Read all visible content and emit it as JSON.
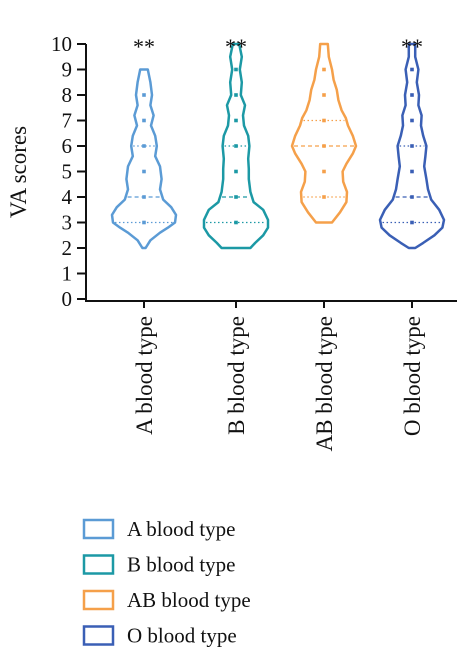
{
  "chart_data": {
    "type": "violin",
    "ylabel": "VA scores",
    "ylim": [
      0,
      10
    ],
    "yticks": [
      0,
      1,
      2,
      3,
      4,
      5,
      6,
      7,
      8,
      9,
      10
    ],
    "categories": [
      "A blood type",
      "B blood type",
      "AB blood type",
      "O blood type"
    ],
    "significance": [
      "**",
      "**",
      "",
      "**"
    ],
    "legend_position": "bottom-left",
    "grid": false,
    "series": [
      {
        "name": "A blood type",
        "color": "#5b9bd5",
        "min": 2,
        "max": 9,
        "quartiles": [
          3,
          4,
          6
        ],
        "points": [
          3,
          4,
          5,
          6,
          7,
          8
        ],
        "profile": [
          [
            2,
            0.05
          ],
          [
            2.3,
            0.2
          ],
          [
            2.6,
            0.5
          ],
          [
            2.8,
            0.75
          ],
          [
            3,
            0.97
          ],
          [
            3.3,
            1.0
          ],
          [
            3.6,
            0.85
          ],
          [
            3.9,
            0.6
          ],
          [
            4.3,
            0.5
          ],
          [
            4.7,
            0.55
          ],
          [
            5.2,
            0.5
          ],
          [
            5.6,
            0.35
          ],
          [
            6,
            0.4
          ],
          [
            6.4,
            0.35
          ],
          [
            6.8,
            0.22
          ],
          [
            7.2,
            0.3
          ],
          [
            7.6,
            0.2
          ],
          [
            8,
            0.25
          ],
          [
            8.5,
            0.2
          ],
          [
            9,
            0.12
          ]
        ]
      },
      {
        "name": "B blood type",
        "color": "#1c99a5",
        "min": 2,
        "max": 10,
        "quartiles": [
          3,
          4,
          6
        ],
        "points": [
          3,
          4,
          5,
          6,
          7,
          8,
          9
        ],
        "profile": [
          [
            2,
            0.45
          ],
          [
            2.2,
            0.6
          ],
          [
            2.5,
            0.85
          ],
          [
            2.8,
            1.0
          ],
          [
            3.1,
            1.0
          ],
          [
            3.5,
            0.85
          ],
          [
            3.8,
            0.55
          ],
          [
            4.2,
            0.45
          ],
          [
            4.7,
            0.4
          ],
          [
            5.1,
            0.4
          ],
          [
            5.5,
            0.38
          ],
          [
            6,
            0.42
          ],
          [
            6.4,
            0.38
          ],
          [
            6.8,
            0.25
          ],
          [
            7.2,
            0.22
          ],
          [
            7.6,
            0.28
          ],
          [
            8,
            0.15
          ],
          [
            8.5,
            0.18
          ],
          [
            9,
            0.12
          ],
          [
            9.5,
            0.18
          ],
          [
            10,
            0.1
          ]
        ]
      },
      {
        "name": "AB blood type",
        "color": "#f5a04a",
        "min": 3,
        "max": 10,
        "quartiles": [
          4,
          6,
          7
        ],
        "points": [
          4,
          5,
          6,
          7,
          8,
          9
        ],
        "profile": [
          [
            3,
            0.25
          ],
          [
            3.4,
            0.5
          ],
          [
            3.8,
            0.7
          ],
          [
            4.2,
            0.72
          ],
          [
            4.6,
            0.6
          ],
          [
            5,
            0.58
          ],
          [
            5.3,
            0.7
          ],
          [
            5.7,
            0.9
          ],
          [
            6,
            1.0
          ],
          [
            6.4,
            0.9
          ],
          [
            6.8,
            0.75
          ],
          [
            7.1,
            0.68
          ],
          [
            7.4,
            0.55
          ],
          [
            7.8,
            0.45
          ],
          [
            8.2,
            0.4
          ],
          [
            8.6,
            0.3
          ],
          [
            9,
            0.25
          ],
          [
            9.5,
            0.15
          ],
          [
            10,
            0.12
          ]
        ]
      },
      {
        "name": "O blood type",
        "color": "#3a5fb5",
        "min": 2,
        "max": 10,
        "quartiles": [
          3,
          4,
          6
        ],
        "points": [
          3,
          4,
          5,
          6,
          7,
          8,
          9
        ],
        "profile": [
          [
            2,
            0.1
          ],
          [
            2.2,
            0.35
          ],
          [
            2.5,
            0.7
          ],
          [
            2.8,
            0.95
          ],
          [
            3.1,
            1.0
          ],
          [
            3.5,
            0.85
          ],
          [
            3.9,
            0.6
          ],
          [
            4.3,
            0.5
          ],
          [
            4.7,
            0.45
          ],
          [
            5.2,
            0.38
          ],
          [
            5.6,
            0.42
          ],
          [
            6,
            0.45
          ],
          [
            6.4,
            0.35
          ],
          [
            6.8,
            0.28
          ],
          [
            7.2,
            0.3
          ],
          [
            7.6,
            0.2
          ],
          [
            8,
            0.22
          ],
          [
            8.5,
            0.15
          ],
          [
            9,
            0.2
          ],
          [
            9.5,
            0.1
          ],
          [
            10,
            0.1
          ]
        ]
      }
    ]
  }
}
